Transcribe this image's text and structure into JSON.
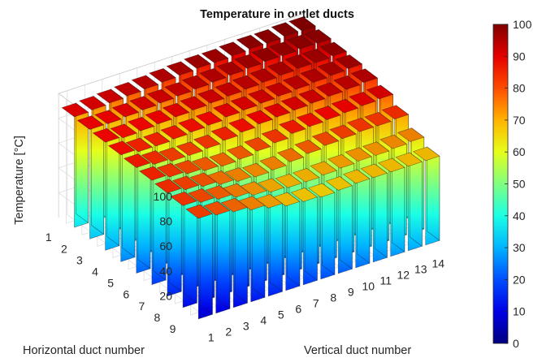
{
  "chart_data": {
    "type": "bar3",
    "title": "Temperature in outlet ducts",
    "xlabel": "Vertical duct number",
    "ylabel": "Horizontal duct number",
    "zlabel": "Temperature [°C]",
    "x": [
      1,
      2,
      3,
      4,
      5,
      6,
      7,
      8,
      9,
      10,
      11,
      12,
      13,
      14
    ],
    "y": [
      1,
      2,
      3,
      4,
      5,
      6,
      7,
      8,
      9
    ],
    "zlim": [
      0,
      100
    ],
    "zticks": [
      20,
      40,
      60,
      80,
      100
    ],
    "grid": true,
    "colormap": "jet",
    "colorbar": {
      "limits": [
        0,
        100
      ],
      "ticks": [
        0,
        10,
        20,
        30,
        40,
        50,
        60,
        70,
        80,
        90,
        100
      ]
    },
    "values": [
      [
        89,
        90,
        91,
        92,
        93,
        94,
        95,
        96,
        96,
        97,
        98,
        98,
        99,
        99
      ],
      [
        88,
        88,
        89,
        90,
        91,
        92,
        93,
        94,
        95,
        96,
        97,
        97,
        98,
        98
      ],
      [
        87,
        86,
        87,
        88,
        89,
        90,
        91,
        92,
        93,
        94,
        95,
        96,
        96,
        97
      ],
      [
        86,
        84,
        84,
        85,
        86,
        87,
        89,
        90,
        91,
        92,
        93,
        94,
        95,
        96
      ],
      [
        85,
        83,
        81,
        81,
        82,
        84,
        86,
        88,
        89,
        90,
        91,
        92,
        93,
        94
      ],
      [
        84,
        82,
        80,
        78,
        77,
        78,
        80,
        82,
        85,
        86,
        87,
        88,
        89,
        90
      ],
      [
        83,
        81,
        79,
        76,
        74,
        73,
        74,
        76,
        78,
        80,
        81,
        82,
        82,
        83
      ],
      [
        82,
        80,
        78,
        75,
        72,
        70,
        69,
        69,
        70,
        71,
        72,
        72,
        73,
        74
      ],
      [
        81,
        79,
        77,
        74,
        71,
        68,
        67,
        66,
        67,
        68,
        68,
        68,
        68,
        68
      ]
    ]
  }
}
